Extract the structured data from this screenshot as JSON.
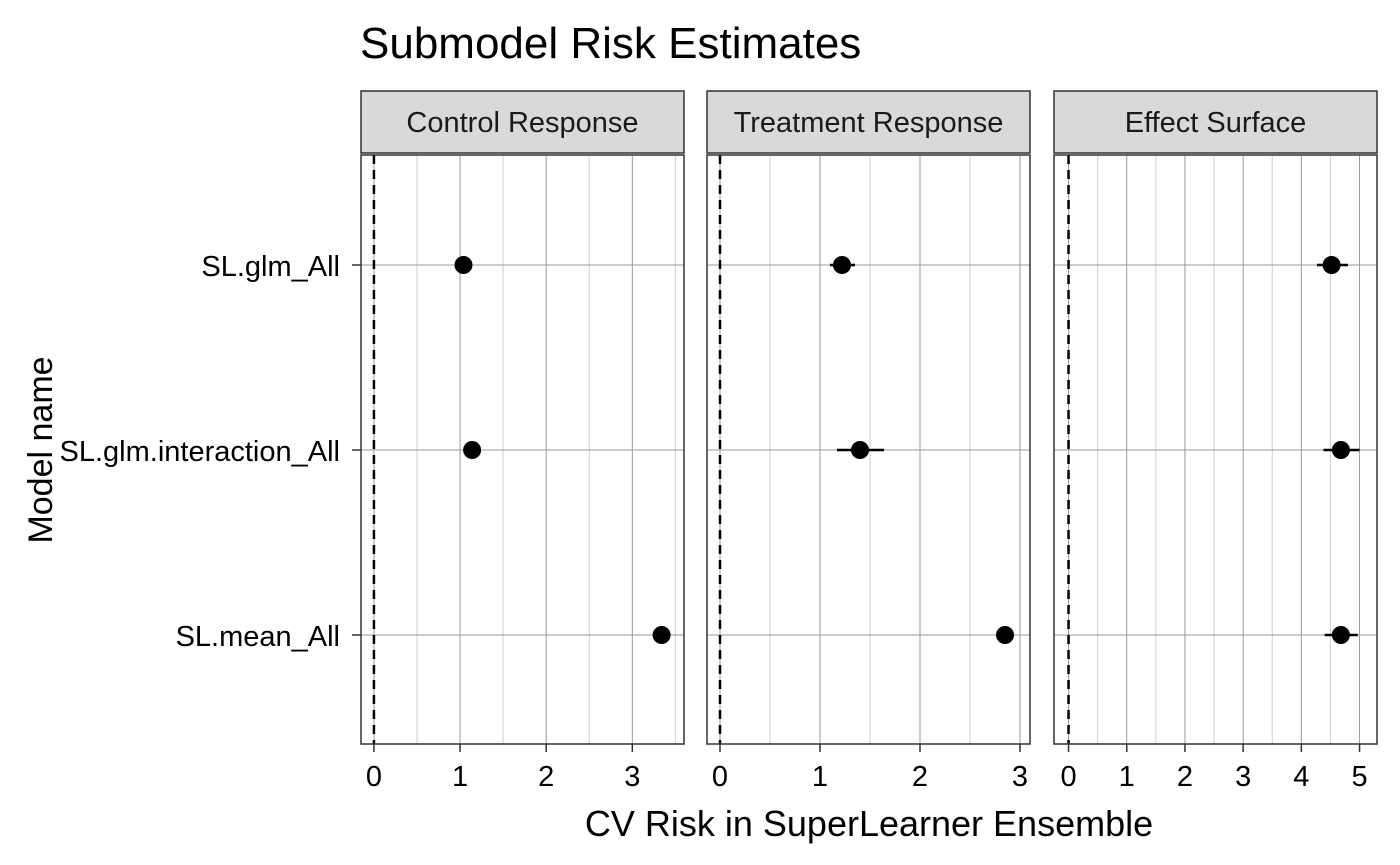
{
  "chart_data": {
    "type": "scatter",
    "title": "Submodel Risk Estimates",
    "xlabel": "CV Risk in SuperLearner Ensemble",
    "ylabel": "Model name",
    "categories": [
      "SL.glm_All",
      "SL.glm.interaction_All",
      "SL.mean_All"
    ],
    "reference_line": {
      "x": 0,
      "style": "dashed"
    },
    "grid": true,
    "panels": [
      {
        "name": "Control Response",
        "xlim": [
          -0.15,
          3.6
        ],
        "xticks": [
          0,
          1,
          2,
          3
        ],
        "points": [
          {
            "model": "SL.glm_All",
            "x": 1.04,
            "lo": 1.0,
            "hi": 1.08
          },
          {
            "model": "SL.glm.interaction_All",
            "x": 1.14,
            "lo": 1.1,
            "hi": 1.18
          },
          {
            "model": "SL.mean_All",
            "x": 3.34,
            "lo": 3.26,
            "hi": 3.42
          }
        ]
      },
      {
        "name": "Treatment Response",
        "xlim": [
          -0.13,
          3.1
        ],
        "xticks": [
          0,
          1,
          2,
          3
        ],
        "points": [
          {
            "model": "SL.glm_All",
            "x": 1.22,
            "lo": 1.1,
            "hi": 1.35
          },
          {
            "model": "SL.glm.interaction_All",
            "x": 1.4,
            "lo": 1.17,
            "hi": 1.64
          },
          {
            "model": "SL.mean_All",
            "x": 2.85,
            "lo": 2.8,
            "hi": 2.9
          }
        ]
      },
      {
        "name": "Effect Surface",
        "xlim": [
          -0.25,
          5.3
        ],
        "xticks": [
          0,
          1,
          2,
          3,
          4,
          5
        ],
        "points": [
          {
            "model": "SL.glm_All",
            "x": 4.52,
            "lo": 4.27,
            "hi": 4.8
          },
          {
            "model": "SL.glm.interaction_All",
            "x": 4.68,
            "lo": 4.38,
            "hi": 5.0
          },
          {
            "model": "SL.mean_All",
            "x": 4.68,
            "lo": 4.4,
            "hi": 4.97
          }
        ]
      }
    ]
  }
}
